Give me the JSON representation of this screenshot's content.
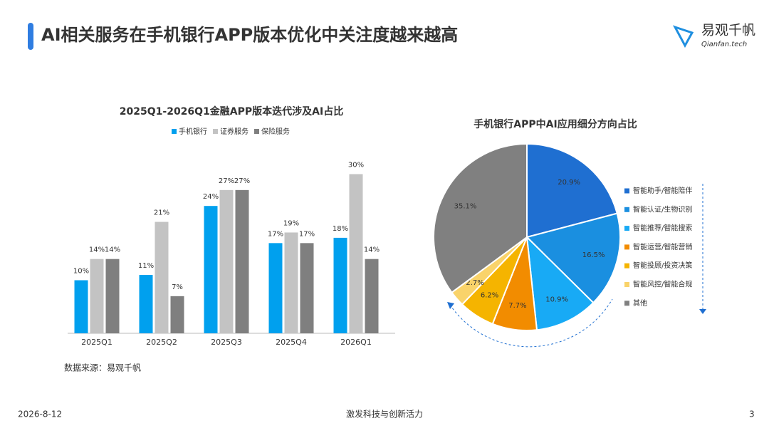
{
  "header": {
    "title": "AI相关服务在手机银行APP版本优化中关注度越来越高",
    "logo_name": "易观千帆",
    "logo_url": "Qianfan.tech"
  },
  "chart_data": [
    {
      "type": "bar",
      "title": "2025Q1-2026Q1金融APP版本迭代涉及AI占比",
      "categories": [
        "2025Q1",
        "2025Q2",
        "2025Q3",
        "2025Q4",
        "2026Q1"
      ],
      "series": [
        {
          "name": "手机银行",
          "color": "#00a0ee",
          "values": [
            10,
            11,
            24,
            17,
            18
          ],
          "value_labels": [
            "10%",
            "11%",
            "24%",
            "17%",
            "18%"
          ]
        },
        {
          "name": "证券服务",
          "color": "#c3c3c3",
          "values": [
            14,
            21,
            27,
            19,
            30
          ],
          "value_labels": [
            "14%",
            "21%",
            "27%",
            "19%",
            "30%"
          ]
        },
        {
          "name": "保险服务",
          "color": "#7f7f7f",
          "values": [
            14,
            7,
            27,
            17,
            14
          ],
          "value_labels": [
            "14%",
            "7%",
            "27%",
            "17%",
            "14%"
          ]
        }
      ]
    },
    {
      "type": "pie",
      "title": "手机银行APP中AI应用细分方向占比",
      "categories": [
        "智能助手/智能陪伴",
        "智能认证/生物识别",
        "智能推荐/智能搜索",
        "智能运营/智能营销",
        "智能投顾/投资决策",
        "智能风控/智能合规",
        "其他"
      ],
      "values": [
        20.9,
        16.5,
        10.9,
        7.7,
        6.2,
        2.7,
        35.1
      ],
      "value_labels": [
        "20.9%",
        "16.5%",
        "10.9%",
        "7.7%",
        "6.2%",
        "2.7%",
        "35.1%"
      ],
      "colors": [
        "#1f6fd1",
        "#1a8fe0",
        "#18aaf5",
        "#f28c00",
        "#f5b400",
        "#f9d36a",
        "#808080"
      ]
    }
  ],
  "source": "数据来源：易观千帆",
  "footer": {
    "date": "2026-8-12",
    "slogan": "激发科技与创新活力",
    "page": "3"
  }
}
